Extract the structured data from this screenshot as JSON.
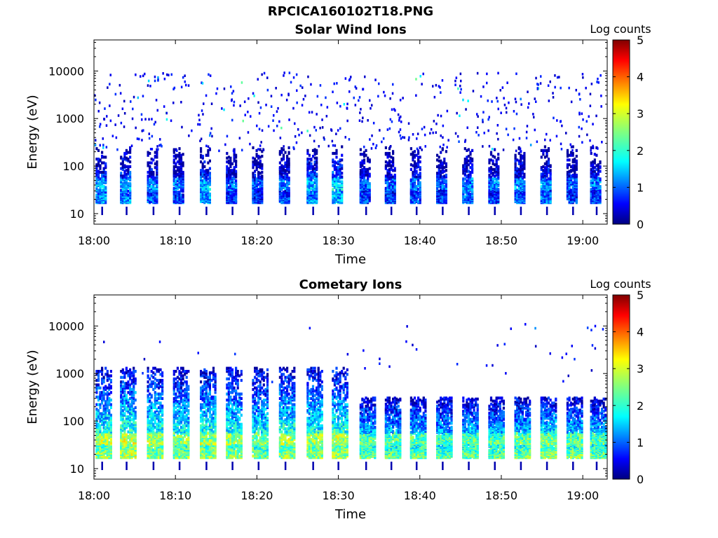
{
  "figure": {
    "title": "RPCICA160102T18.PNG"
  },
  "chart_data": [
    {
      "type": "heatmap",
      "title": "Solar Wind Ions",
      "xlabel": "Time",
      "ylabel": "Energy (eV)",
      "x_tick_labels": [
        "18:00",
        "18:10",
        "18:20",
        "18:30",
        "18:40",
        "18:50",
        "19:00"
      ],
      "x_range_minutes": [
        0,
        63
      ],
      "y_scale": "log",
      "y_tick_labels": [
        "10",
        "100",
        "1000",
        "10000"
      ],
      "y_tick_values": [
        10,
        100,
        1000,
        10000
      ],
      "y_range": [
        6,
        45000
      ],
      "colorbar": {
        "label": "Log counts",
        "range": [
          0,
          5
        ],
        "tick_labels": [
          "0",
          "1",
          "2",
          "3",
          "4",
          "5"
        ],
        "colormap": "jet"
      },
      "bursts": [
        {
          "t": 0.8,
          "peak": 2.0
        },
        {
          "t": 3.8,
          "peak": 2.0
        },
        {
          "t": 7.1,
          "peak": 1.7
        },
        {
          "t": 10.3,
          "peak": 1.6
        },
        {
          "t": 13.6,
          "peak": 2.0
        },
        {
          "t": 16.8,
          "peak": 1.5
        },
        {
          "t": 20.0,
          "peak": 1.4
        },
        {
          "t": 23.3,
          "peak": 1.6
        },
        {
          "t": 26.7,
          "peak": 2.0
        },
        {
          "t": 29.8,
          "peak": 2.2
        },
        {
          "t": 33.2,
          "peak": 1.5
        },
        {
          "t": 36.3,
          "peak": 1.5
        },
        {
          "t": 39.4,
          "peak": 1.6
        },
        {
          "t": 42.6,
          "peak": 1.5
        },
        {
          "t": 45.8,
          "peak": 1.8
        },
        {
          "t": 49.0,
          "peak": 1.6
        },
        {
          "t": 52.2,
          "peak": 1.8
        },
        {
          "t": 55.4,
          "peak": 1.8
        },
        {
          "t": 58.6,
          "peak": 1.5
        },
        {
          "t": 61.5,
          "peak": 1.6
        }
      ]
    },
    {
      "type": "heatmap",
      "title": "Cometary Ions",
      "xlabel": "Time",
      "ylabel": "Energy (eV)",
      "x_tick_labels": [
        "18:00",
        "18:10",
        "18:20",
        "18:30",
        "18:40",
        "18:50",
        "19:00"
      ],
      "x_range_minutes": [
        0,
        63
      ],
      "y_scale": "log",
      "y_tick_labels": [
        "10",
        "100",
        "1000",
        "10000"
      ],
      "y_tick_values": [
        10,
        100,
        1000,
        10000
      ],
      "y_range": [
        6,
        45000
      ],
      "colorbar": {
        "label": "Log counts",
        "range": [
          0,
          5
        ],
        "tick_labels": [
          "0",
          "1",
          "2",
          "3",
          "4",
          "5"
        ],
        "colormap": "jet"
      },
      "bursts": [
        {
          "t": 0.8,
          "peak": 3.2
        },
        {
          "t": 3.8,
          "peak": 3.4
        },
        {
          "t": 7.1,
          "peak": 3.2
        },
        {
          "t": 10.3,
          "peak": 3.1
        },
        {
          "t": 13.6,
          "peak": 3.2
        },
        {
          "t": 16.8,
          "peak": 3.1
        },
        {
          "t": 20.0,
          "peak": 3.0
        },
        {
          "t": 23.3,
          "peak": 3.2
        },
        {
          "t": 26.7,
          "peak": 3.2
        },
        {
          "t": 29.8,
          "peak": 3.3
        },
        {
          "t": 33.2,
          "peak": 3.0
        },
        {
          "t": 36.3,
          "peak": 3.0
        },
        {
          "t": 39.4,
          "peak": 3.0
        },
        {
          "t": 42.6,
          "peak": 2.9
        },
        {
          "t": 45.8,
          "peak": 3.0
        },
        {
          "t": 49.0,
          "peak": 3.0
        },
        {
          "t": 52.2,
          "peak": 3.1
        },
        {
          "t": 55.4,
          "peak": 3.3
        },
        {
          "t": 58.6,
          "peak": 3.1
        },
        {
          "t": 61.5,
          "peak": 3.0
        }
      ]
    }
  ]
}
